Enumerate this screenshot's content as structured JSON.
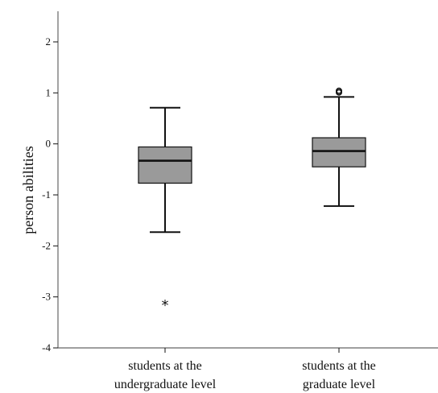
{
  "chart_data": {
    "type": "boxplot",
    "ylabel": "person abilities",
    "ylim": [
      -4,
      2.6
    ],
    "yticks": [
      -4,
      -3,
      -2,
      -1,
      0,
      1,
      2
    ],
    "grid": false,
    "categories": [
      [
        "students at the",
        "undergraduate level"
      ],
      [
        "students at the",
        "graduate level"
      ]
    ],
    "boxes": [
      {
        "whisker_low": -1.73,
        "q1": -0.77,
        "median": -0.33,
        "q3": -0.06,
        "whisker_high": 0.71,
        "extremes": [
          -3.15
        ],
        "outliers": []
      },
      {
        "whisker_low": -1.22,
        "q1": -0.45,
        "median": -0.14,
        "q3": 0.12,
        "whisker_high": 0.92,
        "extremes": [],
        "outliers": [
          1.01,
          1.04
        ]
      }
    ],
    "colors": {
      "box_fill": "#9a9a9a",
      "line": "#111111",
      "frame": "#666666"
    },
    "markers": {
      "outlier": "circle",
      "extreme": "*"
    }
  }
}
